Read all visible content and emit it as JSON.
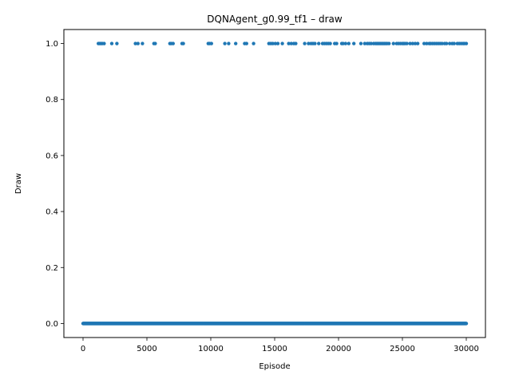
{
  "chart_data": {
    "type": "scatter",
    "title": "DQNAgent_g0.99_tf1 – draw",
    "xlabel": "Episode",
    "ylabel": "Draw",
    "xlim": [
      -1500,
      31500
    ],
    "ylim": [
      -0.05,
      1.05
    ],
    "xticks": [
      0,
      5000,
      10000,
      15000,
      20000,
      25000,
      30000
    ],
    "yticks": [
      0.0,
      0.2,
      0.4,
      0.6,
      0.8,
      1.0
    ],
    "xtick_labels": [
      "0",
      "5000",
      "10000",
      "15000",
      "20000",
      "25000",
      "30000"
    ],
    "ytick_labels": [
      "0.0",
      "0.2",
      "0.4",
      "0.6",
      "0.8",
      "1.0"
    ],
    "grid": false,
    "marker_color": "#1f77b4",
    "series": [
      {
        "x_range": [
          0,
          30000
        ],
        "y": 0,
        "x_draws": [
          1200,
          1300,
          1400,
          1500,
          1650,
          2250,
          2650,
          4100,
          4300,
          4650,
          5550,
          5650,
          6800,
          6900,
          7050,
          7750,
          7850,
          9800,
          9900,
          10050,
          11100,
          11400,
          11950,
          12650,
          12800,
          13350,
          14550,
          14700,
          14850,
          15050,
          15250,
          15600,
          16100,
          16300,
          16500,
          16650,
          17350,
          17650,
          17850,
          18000,
          18150,
          18450,
          18750,
          18900,
          19050,
          19200,
          19350,
          19700,
          19850,
          20250,
          20350,
          20550,
          20800,
          21200,
          21750,
          22050,
          22250,
          22400,
          22550,
          22750,
          22900,
          23000,
          23100,
          23200,
          23300,
          23400,
          23500,
          23600,
          23700,
          23800,
          23950,
          24300,
          24550,
          24700,
          24850,
          25000,
          25100,
          25200,
          25350,
          25600,
          25800,
          26000,
          26200,
          26700,
          26900,
          27100,
          27200,
          27350,
          27500,
          27650,
          27800,
          27950,
          28100,
          28300,
          28450,
          28700,
          28900,
          29050,
          29300,
          29450,
          29600,
          29750,
          29850,
          30000
        ]
      }
    ]
  }
}
